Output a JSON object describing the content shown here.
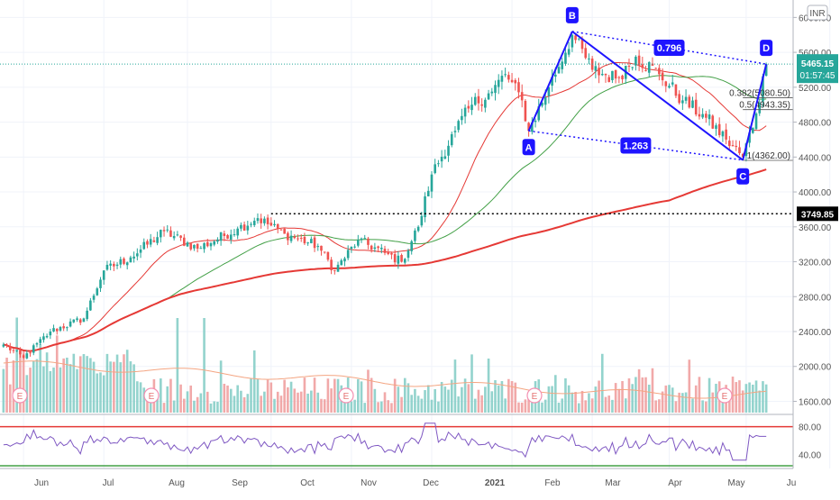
{
  "chart_data": {
    "type": "candlestick",
    "currency": "INR",
    "x_tick_labels": [
      "Jun",
      "Jul",
      "Aug",
      "Sep",
      "Oct",
      "Nov",
      "Dec",
      "2021",
      "Feb",
      "Mar",
      "Apr",
      "May",
      "Ju"
    ],
    "price_axis": {
      "ylim": [
        1450,
        6200
      ],
      "tick_labels": [
        "6000.00",
        "5600.00",
        "5200.00",
        "4800.00",
        "4400.00",
        "4000.00",
        "3600.00",
        "3200.00",
        "2800.00",
        "2400.00",
        "2000.00",
        "1600.00"
      ],
      "tick_values": [
        6000,
        5600,
        5200,
        4800,
        4400,
        4000,
        3600,
        3200,
        2800,
        2400,
        2000,
        1600
      ]
    },
    "last_price": {
      "value": 5465.15,
      "label": "5465.15",
      "countdown": "01:57:45",
      "color": "#26a69a"
    },
    "resistance": {
      "value": 3749.85,
      "label": "3749.85"
    },
    "patterns": {
      "points": [
        {
          "name": "A",
          "bar": 157,
          "price": 4700
        },
        {
          "name": "B",
          "bar": 170,
          "price": 5840
        },
        {
          "name": "C",
          "bar": 221,
          "price": 4365
        },
        {
          "name": "D",
          "bar": 228,
          "price": 5465
        }
      ],
      "ratios": [
        {
          "label": "0.796",
          "between": "B-D"
        },
        {
          "label": "1.263",
          "between": "A-C"
        }
      ],
      "color": "#1e14ff"
    },
    "fib_levels": [
      {
        "label": "0.382(5080.50)",
        "value": 5080.5
      },
      {
        "label": "0.5(4943.35)",
        "value": 4943.35
      },
      {
        "label": "1(4362.00)",
        "value": 4362.0
      }
    ],
    "moving_averages": [
      {
        "color": "#e53935",
        "period": 20
      },
      {
        "color": "#43a047",
        "period": 50
      },
      {
        "color": "#e53935",
        "period": 200
      }
    ],
    "earnings_markers": [
      "E",
      "E",
      "E",
      "E",
      "E"
    ],
    "volume": {
      "ma_color": "#f4a582",
      "colors": {
        "up": "#80cbc4",
        "down": "#ef9a9a"
      }
    },
    "rsi": {
      "tick_labels": [
        "80.00",
        "40.00"
      ],
      "tick_values": [
        80,
        40
      ],
      "ylim": [
        20,
        95
      ],
      "overbought": 80,
      "oversold": 20,
      "color": "#7e57c2"
    },
    "colors": {
      "up": "#26a69a",
      "down": "#ef5350"
    },
    "anchors": [
      {
        "bar": 0,
        "price": 2250
      },
      {
        "bar": 6,
        "price": 2100
      },
      {
        "bar": 14,
        "price": 2400
      },
      {
        "bar": 24,
        "price": 2550
      },
      {
        "bar": 30,
        "price": 3100
      },
      {
        "bar": 38,
        "price": 3250
      },
      {
        "bar": 48,
        "price": 3550
      },
      {
        "bar": 58,
        "price": 3350
      },
      {
        "bar": 70,
        "price": 3580
      },
      {
        "bar": 76,
        "price": 3700
      },
      {
        "bar": 84,
        "price": 3520
      },
      {
        "bar": 94,
        "price": 3380
      },
      {
        "bar": 99,
        "price": 3100
      },
      {
        "bar": 106,
        "price": 3450
      },
      {
        "bar": 114,
        "price": 3300
      },
      {
        "bar": 119,
        "price": 3200
      },
      {
        "bar": 124,
        "price": 3600
      },
      {
        "bar": 128,
        "price": 4200
      },
      {
        "bar": 135,
        "price": 4700
      },
      {
        "bar": 140,
        "price": 5000
      },
      {
        "bar": 146,
        "price": 5150
      },
      {
        "bar": 150,
        "price": 5350
      },
      {
        "bar": 155,
        "price": 5050
      },
      {
        "bar": 157,
        "price": 4700
      },
      {
        "bar": 163,
        "price": 5200
      },
      {
        "bar": 170,
        "price": 5800
      },
      {
        "bar": 176,
        "price": 5400
      },
      {
        "bar": 183,
        "price": 5300
      },
      {
        "bar": 189,
        "price": 5550
      },
      {
        "bar": 196,
        "price": 5350
      },
      {
        "bar": 203,
        "price": 5050
      },
      {
        "bar": 210,
        "price": 4850
      },
      {
        "bar": 216,
        "price": 4600
      },
      {
        "bar": 221,
        "price": 4400
      },
      {
        "bar": 225,
        "price": 4900
      },
      {
        "bar": 228,
        "price": 5465
      }
    ]
  }
}
